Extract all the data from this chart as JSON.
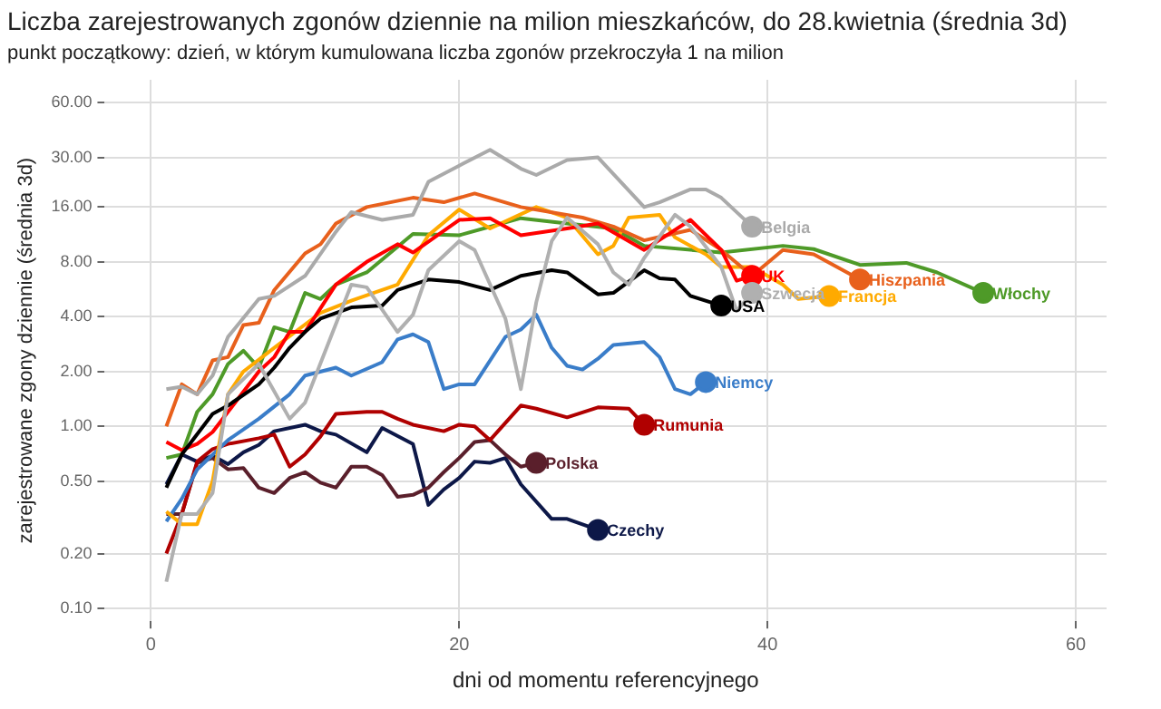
{
  "chart_data": {
    "type": "line",
    "title": "Liczba zarejestrowanych zgonów dziennie na milion mieszkańców, do 28.kwietnia (średnia 3d)",
    "subtitle": "punkt początkowy: dzień, w którym kumulowana liczba zgonów przekroczyła 1 na milion",
    "xlabel": "dni od momentu referencyjnego",
    "ylabel": "zarejestrowane zgony dziennie (średnia 3d)",
    "log": "y",
    "grid": true,
    "legend": false,
    "xlim": [
      -3,
      62
    ],
    "xticks": [
      0,
      20,
      40,
      60
    ],
    "ylim": [
      0.085,
      80
    ],
    "yticks": [
      {
        "value": 0.1,
        "label": "0.10"
      },
      {
        "value": 0.2,
        "label": "0.20"
      },
      {
        "value": 0.5,
        "label": "0.50"
      },
      {
        "value": 1,
        "label": "1.00"
      },
      {
        "value": 2,
        "label": "2.00"
      },
      {
        "value": 4,
        "label": "4.00"
      },
      {
        "value": 8,
        "label": "8.00"
      },
      {
        "value": 16,
        "label": "16.00"
      },
      {
        "value": 30,
        "label": "30.00"
      },
      {
        "value": 60,
        "label": "60.00"
      }
    ],
    "series": [
      {
        "name": "Belgia",
        "color": "#aaaaaa",
        "x": [
          1,
          2,
          3,
          4,
          5,
          7,
          8,
          10,
          12,
          13,
          15,
          17,
          18,
          20,
          22,
          24,
          25,
          27,
          29,
          32,
          33,
          35,
          36,
          37,
          39
        ],
        "values": [
          1.6,
          1.65,
          1.5,
          1.9,
          3.1,
          5,
          5.2,
          6.7,
          11.7,
          15,
          13.6,
          14.5,
          22,
          27,
          33,
          26,
          24,
          29,
          30,
          16,
          17,
          20,
          20,
          18,
          12.5
        ]
      },
      {
        "name": "Szwecja",
        "color": "#b0b0b0",
        "x": [
          1,
          2,
          3,
          4,
          5,
          7,
          9,
          10,
          13,
          14,
          16,
          17,
          18,
          20,
          21,
          23,
          24,
          25,
          26,
          27,
          29,
          30,
          31,
          32,
          34,
          35,
          37,
          38,
          39
        ],
        "values": [
          0.14,
          0.33,
          0.33,
          0.43,
          1.5,
          2.2,
          1.1,
          1.35,
          6,
          5.8,
          3.3,
          4.1,
          7.2,
          10.4,
          9.3,
          3.9,
          1.6,
          4.8,
          10.4,
          14,
          10,
          7,
          6,
          8.4,
          14.5,
          12.5,
          7.5,
          4.3,
          5.4
        ]
      },
      {
        "name": "USA",
        "color": "#000000",
        "x": [
          1,
          2,
          4,
          5,
          7,
          8,
          9,
          10,
          11,
          13,
          15,
          16,
          18,
          20,
          22,
          24,
          26,
          27,
          29,
          30,
          32,
          33,
          34,
          35,
          37
        ],
        "values": [
          0.46,
          0.7,
          1.17,
          1.3,
          1.7,
          2.1,
          2.7,
          3.3,
          3.9,
          4.5,
          4.6,
          5.6,
          6.4,
          6.2,
          5.6,
          6.7,
          7.2,
          7,
          5.3,
          5.4,
          7.2,
          6.5,
          6.4,
          5.2,
          4.6
        ]
      },
      {
        "name": "UK",
        "color": "#ff0000",
        "x": [
          1,
          2,
          3,
          4,
          7,
          8,
          9,
          10,
          12,
          14,
          16,
          17,
          20,
          22,
          24,
          27,
          29,
          32,
          35,
          37,
          38,
          39
        ],
        "values": [
          0.82,
          0.74,
          0.8,
          0.93,
          2,
          2.4,
          3.3,
          3.3,
          6,
          8,
          10,
          9,
          13.6,
          13.9,
          11.2,
          12.2,
          13,
          9.3,
          13.6,
          9.3,
          6.3,
          6.7
        ]
      },
      {
        "name": "Hiszpania",
        "color": "#e8601c",
        "x": [
          1,
          2,
          3,
          4,
          5,
          6,
          7,
          8,
          10,
          11,
          12,
          14,
          17,
          19,
          21,
          24,
          28,
          30,
          32,
          35,
          37,
          39,
          41,
          43,
          46
        ],
        "values": [
          1,
          1.7,
          1.5,
          2.3,
          2.4,
          3.6,
          3.7,
          5.6,
          8.9,
          10,
          13,
          16,
          18,
          17,
          19,
          16,
          14,
          12.5,
          10.5,
          12,
          9.3,
          6.7,
          9.3,
          8.8,
          6.4
        ]
      },
      {
        "name": "Francja",
        "color": "#ffaa00",
        "x": [
          1,
          2,
          3,
          4,
          5,
          6,
          8,
          11,
          13,
          16,
          18,
          20,
          22,
          25,
          27,
          29,
          30,
          31,
          33,
          34,
          36,
          37,
          39,
          41,
          42,
          44
        ],
        "values": [
          0.34,
          0.29,
          0.29,
          0.5,
          1.5,
          2,
          2.7,
          4.2,
          4.9,
          6,
          11.2,
          15.5,
          12.2,
          16,
          14,
          8.8,
          9.8,
          14,
          14.5,
          10.9,
          8.8,
          7.5,
          7.5,
          6,
          5,
          5.2
        ]
      },
      {
        "name": "Włochy",
        "color": "#4e9a28",
        "x": [
          1,
          2,
          3,
          4,
          5,
          6,
          7,
          8,
          9,
          10,
          11,
          12,
          14,
          17,
          20,
          24,
          27,
          30,
          32,
          37,
          41,
          43,
          46,
          49,
          51,
          54
        ],
        "values": [
          0.67,
          0.7,
          1.2,
          1.5,
          2.2,
          2.6,
          2.1,
          3.5,
          3.3,
          5.4,
          5,
          6,
          7,
          11.4,
          11.2,
          13.9,
          13,
          12.2,
          9.8,
          9,
          9.8,
          9.4,
          7.7,
          7.9,
          7,
          5.4
        ]
      },
      {
        "name": "Niemcy",
        "color": "#3a7dc9",
        "x": [
          1,
          2,
          3,
          5,
          7,
          9,
          10,
          12,
          13,
          15,
          16,
          17,
          18,
          19,
          20,
          21,
          23,
          24,
          25,
          26,
          27,
          28,
          29,
          30,
          32,
          33,
          34,
          35,
          36
        ],
        "values": [
          0.3,
          0.4,
          0.58,
          0.84,
          1.1,
          1.5,
          1.9,
          2.1,
          1.9,
          2.25,
          3,
          3.2,
          2.9,
          1.6,
          1.7,
          1.7,
          3.1,
          3.4,
          4.1,
          2.7,
          2.15,
          2.05,
          2.35,
          2.8,
          2.9,
          2.4,
          1.6,
          1.5,
          1.75
        ]
      },
      {
        "name": "Rumunia",
        "color": "#b00000",
        "x": [
          1,
          2,
          3,
          4,
          5,
          7,
          8,
          9,
          10,
          11,
          12,
          14,
          15,
          16,
          17,
          19,
          20,
          21,
          22,
          24,
          25,
          27,
          29,
          31,
          32
        ],
        "values": [
          0.2,
          0.33,
          0.64,
          0.75,
          0.8,
          0.86,
          0.9,
          0.6,
          0.7,
          0.88,
          1.17,
          1.2,
          1.2,
          1.1,
          1.02,
          0.94,
          1.02,
          1,
          0.84,
          1.3,
          1.25,
          1.12,
          1.27,
          1.25,
          1.02
        ]
      },
      {
        "name": "Polska",
        "color": "#5a1f2b",
        "x": [
          1,
          2,
          3,
          4,
          5,
          6,
          7,
          8,
          9,
          10,
          11,
          12,
          13,
          14,
          15,
          16,
          17,
          18,
          19,
          20,
          21,
          22,
          23,
          24,
          25
        ],
        "values": [
          0.33,
          0.33,
          0.63,
          0.67,
          0.58,
          0.59,
          0.46,
          0.43,
          0.52,
          0.56,
          0.49,
          0.46,
          0.6,
          0.6,
          0.54,
          0.41,
          0.42,
          0.46,
          0.56,
          0.67,
          0.82,
          0.84,
          0.7,
          0.6,
          0.63
        ]
      },
      {
        "name": "Czechy",
        "color": "#0d1848",
        "x": [
          1,
          2,
          3,
          4,
          5,
          6,
          7,
          8,
          10,
          11,
          12,
          14,
          15,
          17,
          18,
          19,
          20,
          21,
          22,
          23,
          24,
          26,
          27,
          29
        ],
        "values": [
          0.48,
          0.7,
          0.64,
          0.69,
          0.62,
          0.72,
          0.79,
          0.94,
          1.02,
          0.94,
          0.9,
          0.72,
          0.98,
          0.8,
          0.37,
          0.45,
          0.52,
          0.64,
          0.63,
          0.67,
          0.48,
          0.31,
          0.31,
          0.27
        ]
      }
    ]
  }
}
